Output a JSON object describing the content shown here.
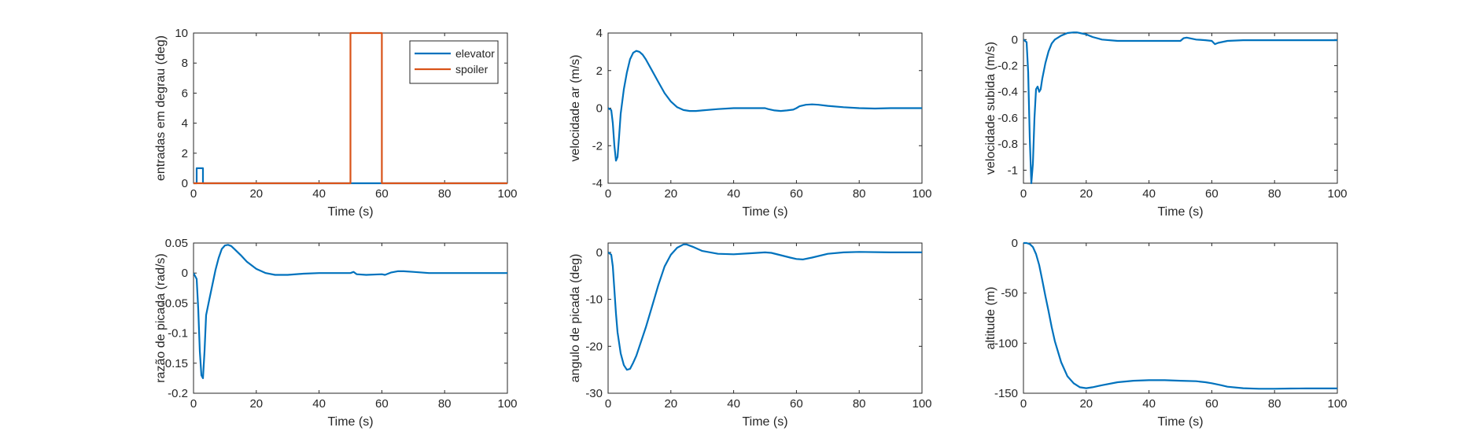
{
  "figure": {
    "colors": {
      "axis": "#262626",
      "blue": "#0072BD",
      "orange": "#D95319"
    }
  },
  "chart_data": [
    {
      "type": "line",
      "xlabel": "Time (s)",
      "ylabel": "entradas em degrau (deg)",
      "xlim": [
        0,
        100
      ],
      "ylim": [
        0,
        10
      ],
      "xticks": [
        0,
        20,
        40,
        60,
        80,
        100
      ],
      "yticks": [
        0,
        2,
        4,
        6,
        8,
        10
      ],
      "grid": false,
      "legend": "top-right",
      "series": [
        {
          "name": "elevator",
          "color": "#0072BD",
          "x": [
            0,
            1,
            1,
            3,
            3,
            50,
            50,
            60,
            60,
            100
          ],
          "y": [
            0,
            0,
            1,
            1,
            0,
            0,
            0,
            0,
            0,
            0
          ]
        },
        {
          "name": "spoiler",
          "color": "#D95319",
          "x": [
            0,
            50,
            50,
            60,
            60,
            100
          ],
          "y": [
            0,
            0,
            10,
            10,
            0,
            0
          ]
        }
      ]
    },
    {
      "type": "line",
      "xlabel": "Time (s)",
      "ylabel": "velocidade ar (m/s)",
      "xlim": [
        0,
        100
      ],
      "ylim": [
        -4,
        4
      ],
      "xticks": [
        0,
        20,
        40,
        60,
        80,
        100
      ],
      "yticks": [
        -4,
        -2,
        0,
        2,
        4
      ],
      "grid": false,
      "series": [
        {
          "color": "#0072BD",
          "x": [
            0,
            1,
            1.5,
            2,
            2.5,
            3,
            3.5,
            4,
            5,
            6,
            7,
            8,
            9,
            10,
            11,
            12,
            14,
            16,
            18,
            20,
            22,
            24,
            26,
            28,
            30,
            35,
            40,
            45,
            50,
            51,
            53,
            55,
            57,
            59,
            60,
            61,
            63,
            65,
            67,
            70,
            75,
            80,
            85,
            90,
            95,
            100
          ],
          "y": [
            0,
            -0.1,
            -0.8,
            -2.0,
            -2.8,
            -2.6,
            -1.5,
            -0.3,
            1.0,
            1.9,
            2.6,
            2.95,
            3.05,
            3.0,
            2.85,
            2.6,
            2.0,
            1.4,
            0.8,
            0.35,
            0.05,
            -0.1,
            -0.15,
            -0.15,
            -0.12,
            -0.05,
            0.0,
            0.0,
            0.0,
            -0.05,
            -0.12,
            -0.15,
            -0.12,
            -0.08,
            0.0,
            0.1,
            0.18,
            0.2,
            0.18,
            0.12,
            0.05,
            0.0,
            -0.02,
            0.0,
            0.0,
            0.0
          ]
        }
      ]
    },
    {
      "type": "line",
      "xlabel": "Time (s)",
      "ylabel": "velocidade subida (m/s)",
      "xlim": [
        0,
        100
      ],
      "ylim": [
        -1.1,
        0.05
      ],
      "xticks": [
        0,
        20,
        40,
        60,
        80,
        100
      ],
      "yticks": [
        -1,
        -0.8,
        -0.6,
        -0.4,
        -0.2,
        0
      ],
      "grid": false,
      "series": [
        {
          "color": "#0072BD",
          "x": [
            0,
            1,
            1.5,
            2,
            2.5,
            3,
            3.5,
            4,
            4.5,
            5,
            5.5,
            6,
            7,
            8,
            9,
            10,
            12,
            14,
            16,
            17,
            18,
            20,
            22,
            25,
            30,
            35,
            40,
            45,
            50,
            51,
            52,
            55,
            58,
            60,
            61,
            62,
            65,
            70,
            80,
            90,
            100
          ],
          "y": [
            0,
            -0.02,
            -0.25,
            -0.75,
            -1.1,
            -0.95,
            -0.6,
            -0.38,
            -0.36,
            -0.4,
            -0.38,
            -0.3,
            -0.18,
            -0.09,
            -0.03,
            0.0,
            0.03,
            0.05,
            0.055,
            0.055,
            0.05,
            0.04,
            0.02,
            0.0,
            -0.01,
            -0.01,
            -0.01,
            -0.01,
            -0.01,
            0.01,
            0.015,
            0.0,
            -0.005,
            -0.01,
            -0.035,
            -0.025,
            -0.01,
            -0.005,
            -0.005,
            -0.005,
            -0.005
          ]
        }
      ]
    },
    {
      "type": "line",
      "xlabel": "Time (s)",
      "ylabel": "razão de picada (rad/s)",
      "xlim": [
        0,
        100
      ],
      "ylim": [
        -0.2,
        0.05
      ],
      "xticks": [
        0,
        20,
        40,
        60,
        80,
        100
      ],
      "yticks": [
        -0.2,
        -0.15,
        -0.1,
        -0.05,
        0,
        0.05
      ],
      "grid": false,
      "series": [
        {
          "color": "#0072BD",
          "x": [
            0,
            1,
            1.5,
            2,
            2.5,
            3,
            3.5,
            4,
            5,
            6,
            7,
            8,
            9,
            10,
            11,
            12,
            13,
            15,
            17,
            20,
            23,
            26,
            30,
            35,
            40,
            45,
            50,
            51,
            52,
            55,
            60,
            61,
            63,
            65,
            67,
            70,
            75,
            80,
            90,
            100
          ],
          "y": [
            0,
            -0.01,
            -0.06,
            -0.13,
            -0.17,
            -0.175,
            -0.13,
            -0.07,
            -0.045,
            -0.02,
            0.005,
            0.025,
            0.04,
            0.046,
            0.047,
            0.045,
            0.04,
            0.03,
            0.019,
            0.007,
            0.0,
            -0.003,
            -0.003,
            -0.001,
            0.0,
            0.0,
            0.0,
            0.002,
            -0.002,
            -0.003,
            -0.002,
            -0.003,
            0.001,
            0.003,
            0.003,
            0.002,
            0.0,
            0.0,
            0.0,
            0.0
          ]
        }
      ]
    },
    {
      "type": "line",
      "xlabel": "Time (s)",
      "ylabel": "angulo de picada  (deg)",
      "xlim": [
        0,
        100
      ],
      "ylim": [
        -30,
        2
      ],
      "xticks": [
        0,
        20,
        40,
        60,
        80,
        100
      ],
      "yticks": [
        -30,
        -20,
        -10,
        0
      ],
      "grid": false,
      "series": [
        {
          "color": "#0072BD",
          "x": [
            0,
            1,
            1.5,
            2,
            2.5,
            3,
            4,
            5,
            6,
            7,
            8,
            9,
            10,
            12,
            14,
            16,
            18,
            20,
            22,
            24,
            25,
            27,
            30,
            35,
            40,
            45,
            50,
            52,
            55,
            58,
            60,
            62,
            65,
            70,
            75,
            80,
            90,
            100
          ],
          "y": [
            0,
            -0.5,
            -3,
            -8,
            -13,
            -17,
            -21.5,
            -24,
            -25,
            -24.8,
            -23.5,
            -22,
            -20,
            -16,
            -11.5,
            -7,
            -3,
            -0.5,
            1,
            1.7,
            1.7,
            1.2,
            0.3,
            -0.3,
            -0.4,
            -0.2,
            0.0,
            -0.1,
            -0.6,
            -1.1,
            -1.4,
            -1.5,
            -1.1,
            -0.3,
            0.0,
            0.1,
            0.0,
            0.0
          ]
        }
      ]
    },
    {
      "type": "line",
      "xlabel": "Time (s)",
      "ylabel": "altitude (m)",
      "xlim": [
        0,
        100
      ],
      "ylim": [
        -150,
        0
      ],
      "xticks": [
        0,
        20,
        40,
        60,
        80,
        100
      ],
      "yticks": [
        -150,
        -100,
        -50,
        0
      ],
      "grid": false,
      "series": [
        {
          "color": "#0072BD",
          "x": [
            0,
            1,
            2,
            3,
            4,
            5,
            6,
            7,
            8,
            9,
            10,
            12,
            14,
            16,
            18,
            20,
            22,
            25,
            30,
            35,
            40,
            45,
            50,
            55,
            58,
            60,
            63,
            65,
            70,
            75,
            80,
            85,
            90,
            95,
            100
          ],
          "y": [
            0,
            0,
            -1,
            -4,
            -11,
            -22,
            -37,
            -53,
            -68,
            -84,
            -98,
            -119,
            -133,
            -140,
            -144,
            -145,
            -144,
            -142,
            -139,
            -137.5,
            -137,
            -137,
            -137.5,
            -138,
            -139,
            -140,
            -142,
            -143.5,
            -145,
            -145.5,
            -145.5,
            -145.3,
            -145.2,
            -145.2,
            -145.2
          ]
        }
      ]
    }
  ]
}
